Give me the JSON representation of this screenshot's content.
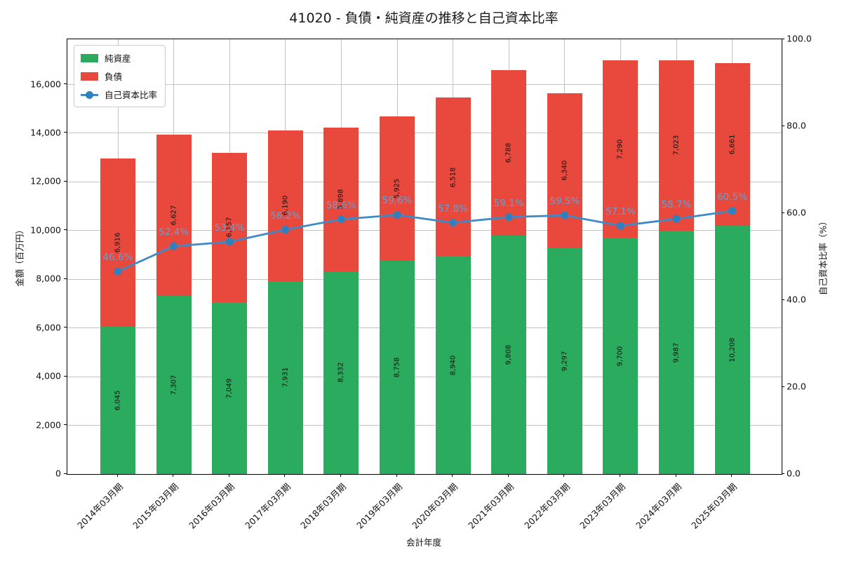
{
  "chart_data": {
    "type": "bar",
    "subtype": "stacked-bars-with-line-overlay",
    "title": "41020 - 負債・純資産の推移と自己資本比率",
    "xlabel": "会計年度",
    "ylabel_left": "金額（百万円）",
    "ylabel_right": "自己資本比率（%）",
    "categories": [
      "2014年03月期",
      "2015年03月期",
      "2016年03月期",
      "2017年03月期",
      "2018年03月期",
      "2019年03月期",
      "2020年03月期",
      "2021年03月期",
      "2022年03月期",
      "2023年03月期",
      "2024年03月期",
      "2025年03月期"
    ],
    "series": [
      {
        "name": "純資産",
        "role": "bar-stack-bottom",
        "color": "#2aab5e",
        "values": [
          6045,
          7307,
          7049,
          7931,
          8332,
          8758,
          8940,
          9808,
          9297,
          9700,
          9987,
          10208
        ]
      },
      {
        "name": "負債",
        "role": "bar-stack-top",
        "color": "#e8493c",
        "values": [
          6916,
          6627,
          6157,
          6190,
          5898,
          5925,
          6518,
          6788,
          6340,
          7290,
          7023,
          6661
        ]
      },
      {
        "name": "自己資本比率",
        "role": "line",
        "axis": "right",
        "color": "#3e8ac8",
        "marker_color": "#2f80bd",
        "label_color": "#64a0d4",
        "values": [
          46.6,
          52.4,
          53.4,
          56.2,
          58.6,
          59.6,
          57.8,
          59.1,
          59.5,
          57.1,
          58.7,
          60.5
        ]
      }
    ],
    "yticks_left": [
      0,
      2000,
      4000,
      6000,
      8000,
      10000,
      12000,
      14000,
      16000
    ],
    "ylim_left": [
      0,
      17860
    ],
    "yticks_right": [
      0,
      20,
      40,
      60,
      80,
      100
    ],
    "ylim_right": [
      0,
      100
    ],
    "grid": true,
    "legend_position": "upper-left"
  }
}
